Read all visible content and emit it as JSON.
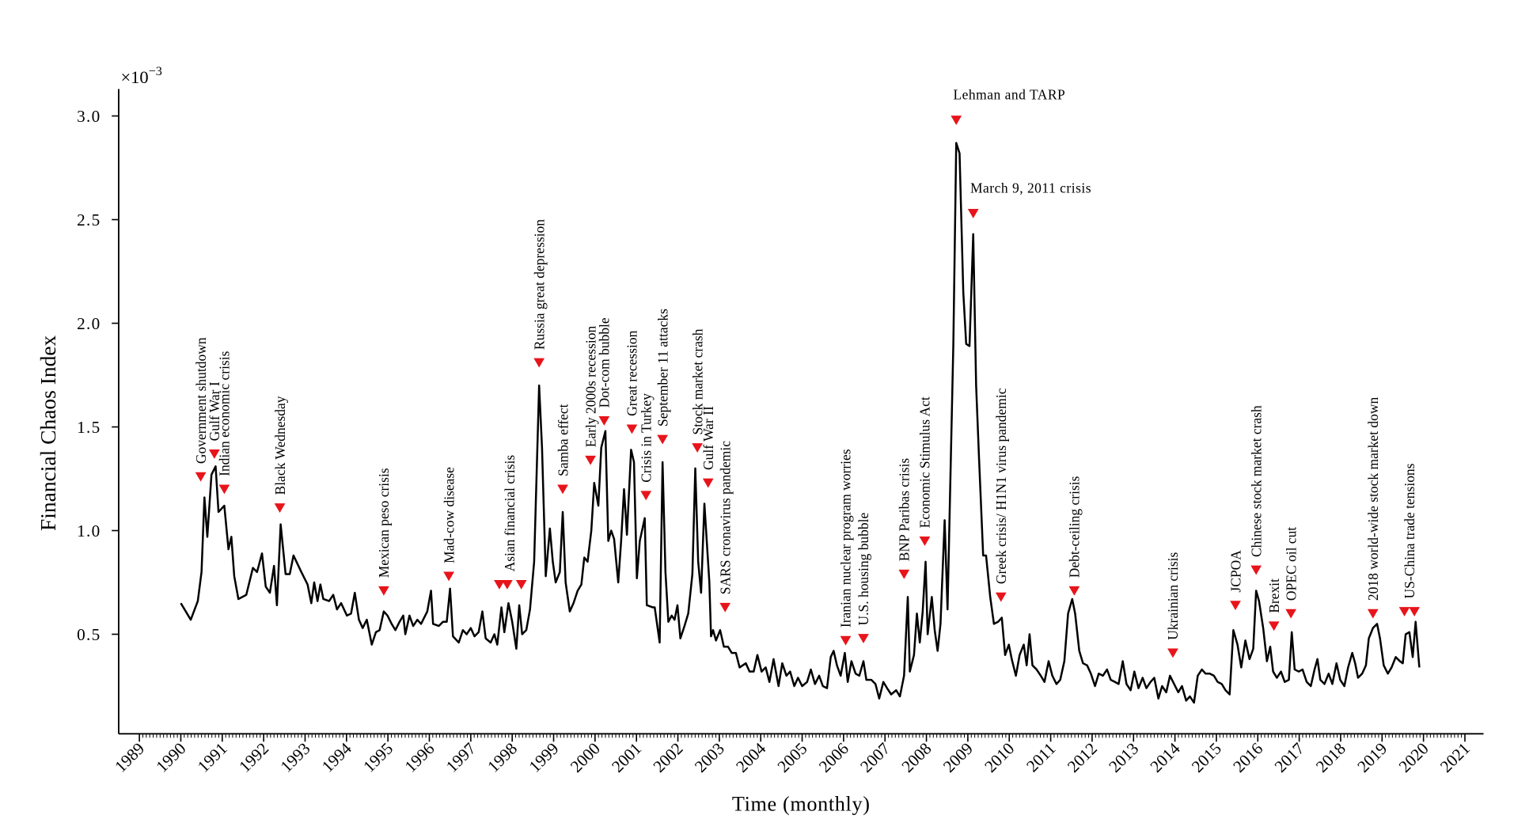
{
  "chart_data": {
    "type": "line",
    "y_label": "Financial Chaos Index",
    "x_label": "Time (monthly)",
    "y_multiplier": {
      "base": "×10",
      "exponent": "−3"
    },
    "color": "#000000",
    "annotation_marker_color": "#e8141b",
    "annotation_text_color": "#1b1b78",
    "xlim": [
      1988.5,
      2021.45
    ],
    "ylim": [
      0.02,
      3.13
    ],
    "xticks": [
      1989,
      1990,
      1991,
      1992,
      1993,
      1994,
      1995,
      1996,
      1997,
      1998,
      1999,
      2000,
      2001,
      2002,
      2003,
      2004,
      2005,
      2006,
      2007,
      2008,
      2009,
      2010,
      2011,
      2012,
      2013,
      2014,
      2015,
      2016,
      2017,
      2018,
      2019,
      2020,
      2021
    ],
    "yticks": [
      0.5,
      {
        "value": 1,
        "label": "1.0"
      },
      1.5,
      {
        "value": 2,
        "label": "2.0"
      },
      2.5,
      {
        "value": 3,
        "label": "3.0"
      }
    ],
    "x": [
      1990.0,
      1990.24,
      1990.41,
      1990.5,
      1990.57,
      1990.64,
      1990.74,
      1990.84,
      1990.91,
      1991.05,
      1991.15,
      1991.22,
      1991.29,
      1991.39,
      1991.58,
      1991.74,
      1991.84,
      1991.96,
      1992.05,
      1992.15,
      1992.25,
      1992.32,
      1992.41,
      1992.53,
      1992.63,
      1992.72,
      1992.91,
      1993.06,
      1993.15,
      1993.22,
      1993.3,
      1993.37,
      1993.44,
      1993.58,
      1993.68,
      1993.77,
      1993.87,
      1994.01,
      1994.11,
      1994.2,
      1994.3,
      1994.39,
      1994.49,
      1994.61,
      1994.71,
      1994.8,
      1994.9,
      1994.99,
      1995.09,
      1995.18,
      1995.28,
      1995.37,
      1995.42,
      1995.52,
      1995.61,
      1995.71,
      1995.8,
      1995.95,
      1996.04,
      1996.09,
      1996.23,
      1996.33,
      1996.42,
      1996.5,
      1996.57,
      1996.71,
      1996.81,
      1996.9,
      1997.0,
      1997.09,
      1997.19,
      1997.28,
      1997.36,
      1997.48,
      1997.57,
      1997.64,
      1997.74,
      1997.81,
      1997.91,
      1998.0,
      1998.1,
      1998.17,
      1998.24,
      1998.34,
      1998.43,
      1998.53,
      1998.65,
      1998.72,
      1998.81,
      1998.91,
      1998.98,
      1999.05,
      1999.15,
      1999.22,
      1999.29,
      1999.39,
      1999.48,
      1999.58,
      1999.67,
      1999.74,
      1999.82,
      1999.91,
      1999.98,
      2000.08,
      2000.15,
      2000.25,
      2000.32,
      2000.39,
      2000.46,
      2000.56,
      2000.63,
      2000.7,
      2000.77,
      2000.87,
      2000.94,
      2001.01,
      2001.08,
      2001.2,
      2001.25,
      2001.39,
      2001.44,
      2001.56,
      2001.63,
      2001.7,
      2001.77,
      2001.85,
      2001.92,
      2001.99,
      2002.06,
      2002.16,
      2002.25,
      2002.35,
      2002.42,
      2002.49,
      2002.56,
      2002.64,
      2002.76,
      2002.8,
      2002.85,
      2002.92,
      2003.02,
      2003.11,
      2003.21,
      2003.3,
      2003.4,
      2003.49,
      2003.64,
      2003.73,
      2003.83,
      2003.92,
      2004.02,
      2004.12,
      2004.21,
      2004.31,
      2004.43,
      2004.52,
      2004.62,
      2004.71,
      2004.81,
      2004.9,
      2005.0,
      2005.12,
      2005.21,
      2005.31,
      2005.41,
      2005.5,
      2005.6,
      2005.69,
      2005.76,
      2005.84,
      2005.93,
      2006.03,
      2006.1,
      2006.19,
      2006.29,
      2006.38,
      2006.48,
      2006.55,
      2006.67,
      2006.77,
      2006.86,
      2006.96,
      2007.05,
      2007.15,
      2007.27,
      2007.36,
      2007.46,
      2007.55,
      2007.6,
      2007.7,
      2007.77,
      2007.84,
      2007.91,
      2007.98,
      2008.03,
      2008.13,
      2008.2,
      2008.27,
      2008.34,
      2008.44,
      2008.51,
      2008.65,
      2008.72,
      2008.8,
      2008.89,
      2008.96,
      2009.04,
      2009.13,
      2009.2,
      2009.27,
      2009.37,
      2009.44,
      2009.54,
      2009.63,
      2009.73,
      2009.82,
      2009.9,
      2009.99,
      2010.06,
      2010.16,
      2010.25,
      2010.35,
      2010.42,
      2010.49,
      2010.56,
      2010.66,
      2010.76,
      2010.85,
      2010.95,
      2011.04,
      2011.14,
      2011.23,
      2011.33,
      2011.42,
      2011.52,
      2011.59,
      2011.69,
      2011.78,
      2011.88,
      2011.97,
      2012.07,
      2012.16,
      2012.26,
      2012.36,
      2012.45,
      2012.55,
      2012.64,
      2012.74,
      2012.83,
      2012.93,
      2013.02,
      2013.12,
      2013.22,
      2013.31,
      2013.41,
      2013.5,
      2013.6,
      2013.69,
      2013.79,
      2013.88,
      2013.98,
      2014.08,
      2014.17,
      2014.27,
      2014.36,
      2014.46,
      2014.55,
      2014.65,
      2014.74,
      2014.84,
      2014.94,
      2015.03,
      2015.13,
      2015.22,
      2015.32,
      2015.41,
      2015.51,
      2015.6,
      2015.7,
      2015.8,
      2015.89,
      2015.96,
      2016.03,
      2016.13,
      2016.22,
      2016.3,
      2016.37,
      2016.46,
      2016.56,
      2016.65,
      2016.75,
      2016.82,
      2016.89,
      2016.99,
      2017.08,
      2017.18,
      2017.28,
      2017.37,
      2017.44,
      2017.51,
      2017.61,
      2017.71,
      2017.8,
      2017.9,
      2017.99,
      2018.09,
      2018.18,
      2018.28,
      2018.35,
      2018.42,
      2018.52,
      2018.61,
      2018.68,
      2018.78,
      2018.88,
      2018.95,
      2019.04,
      2019.14,
      2019.23,
      2019.33,
      2019.43,
      2019.5,
      2019.57,
      2019.66,
      2019.74,
      2019.81,
      2019.9
    ],
    "values": [
      0.65,
      0.57,
      0.66,
      0.8,
      1.16,
      0.97,
      1.27,
      1.31,
      1.09,
      1.12,
      0.91,
      0.97,
      0.78,
      0.67,
      0.69,
      0.82,
      0.8,
      0.89,
      0.73,
      0.7,
      0.83,
      0.64,
      1.03,
      0.79,
      0.79,
      0.88,
      0.8,
      0.74,
      0.65,
      0.75,
      0.66,
      0.74,
      0.67,
      0.66,
      0.69,
      0.62,
      0.65,
      0.59,
      0.6,
      0.7,
      0.57,
      0.53,
      0.57,
      0.45,
      0.51,
      0.52,
      0.61,
      0.59,
      0.55,
      0.52,
      0.56,
      0.59,
      0.5,
      0.59,
      0.54,
      0.57,
      0.55,
      0.61,
      0.71,
      0.55,
      0.54,
      0.56,
      0.56,
      0.72,
      0.49,
      0.46,
      0.52,
      0.5,
      0.53,
      0.49,
      0.51,
      0.61,
      0.48,
      0.46,
      0.5,
      0.45,
      0.63,
      0.51,
      0.65,
      0.56,
      0.43,
      0.64,
      0.5,
      0.52,
      0.62,
      0.85,
      1.7,
      1.4,
      0.78,
      1.01,
      0.85,
      0.75,
      0.8,
      1.09,
      0.75,
      0.61,
      0.65,
      0.71,
      0.74,
      0.87,
      0.85,
      1.0,
      1.23,
      1.12,
      1.4,
      1.48,
      0.95,
      1.0,
      0.96,
      0.75,
      0.95,
      1.2,
      0.98,
      1.39,
      1.33,
      0.77,
      0.95,
      1.06,
      0.64,
      0.63,
      0.63,
      0.46,
      1.33,
      0.8,
      0.56,
      0.59,
      0.57,
      0.64,
      0.48,
      0.54,
      0.6,
      0.79,
      1.3,
      0.85,
      0.7,
      1.13,
      0.75,
      0.49,
      0.52,
      0.47,
      0.52,
      0.44,
      0.44,
      0.41,
      0.41,
      0.34,
      0.36,
      0.32,
      0.32,
      0.4,
      0.32,
      0.34,
      0.27,
      0.38,
      0.25,
      0.36,
      0.3,
      0.32,
      0.25,
      0.29,
      0.25,
      0.27,
      0.33,
      0.26,
      0.3,
      0.25,
      0.24,
      0.39,
      0.42,
      0.35,
      0.3,
      0.41,
      0.27,
      0.37,
      0.31,
      0.3,
      0.37,
      0.28,
      0.28,
      0.26,
      0.19,
      0.27,
      0.24,
      0.21,
      0.23,
      0.2,
      0.3,
      0.68,
      0.32,
      0.4,
      0.6,
      0.46,
      0.61,
      0.85,
      0.5,
      0.68,
      0.52,
      0.42,
      0.55,
      1.05,
      0.62,
      1.9,
      2.87,
      2.82,
      2.15,
      1.9,
      1.89,
      2.43,
      1.7,
      1.35,
      0.88,
      0.88,
      0.68,
      0.55,
      0.56,
      0.58,
      0.4,
      0.45,
      0.38,
      0.3,
      0.4,
      0.45,
      0.35,
      0.5,
      0.35,
      0.33,
      0.3,
      0.27,
      0.37,
      0.3,
      0.26,
      0.28,
      0.37,
      0.6,
      0.67,
      0.6,
      0.42,
      0.36,
      0.35,
      0.31,
      0.25,
      0.31,
      0.3,
      0.33,
      0.28,
      0.27,
      0.26,
      0.37,
      0.26,
      0.23,
      0.32,
      0.24,
      0.29,
      0.24,
      0.27,
      0.29,
      0.19,
      0.25,
      0.22,
      0.3,
      0.26,
      0.22,
      0.25,
      0.18,
      0.2,
      0.17,
      0.3,
      0.33,
      0.31,
      0.31,
      0.3,
      0.27,
      0.26,
      0.23,
      0.21,
      0.52,
      0.45,
      0.34,
      0.47,
      0.38,
      0.43,
      0.71,
      0.66,
      0.53,
      0.37,
      0.44,
      0.32,
      0.29,
      0.32,
      0.27,
      0.28,
      0.51,
      0.33,
      0.32,
      0.33,
      0.27,
      0.25,
      0.33,
      0.38,
      0.28,
      0.26,
      0.31,
      0.26,
      0.36,
      0.28,
      0.25,
      0.34,
      0.41,
      0.36,
      0.29,
      0.31,
      0.35,
      0.48,
      0.53,
      0.55,
      0.48,
      0.35,
      0.31,
      0.34,
      0.39,
      0.37,
      0.36,
      0.5,
      0.51,
      0.39,
      0.56,
      0.34
    ],
    "annotations": [
      {
        "text": "Government shutdown",
        "x": [
          1990.48
        ],
        "y": 1.26
      },
      {
        "text": "Gulf War I",
        "x": [
          1990.81
        ],
        "y": 1.37
      },
      {
        "text": "Indian economic crisis",
        "x": [
          1991.05
        ],
        "y": 1.2
      },
      {
        "text": "Black Wednesday",
        "x": [
          1992.39
        ],
        "y": 1.11
      },
      {
        "text": "Mexican peso crisis",
        "x": [
          1994.9
        ],
        "y": 0.71
      },
      {
        "text": "Mad-cow disease",
        "x": [
          1996.47
        ],
        "y": 0.78
      },
      {
        "text": "Asian financial crisis",
        "x": [
          1997.69,
          1997.88,
          1998.22
        ],
        "y": 0.74
      },
      {
        "text": "Russia great depression",
        "x": [
          1998.65
        ],
        "y": 1.81
      },
      {
        "text": "Samba effect",
        "x": [
          1999.22
        ],
        "y": 1.2
      },
      {
        "text": "Early 2000s recession",
        "x": [
          1999.89
        ],
        "y": 1.34
      },
      {
        "text": "Dot-com bubble",
        "x": [
          2000.22
        ],
        "y": 1.53
      },
      {
        "text": "Great recession",
        "x": [
          2000.89
        ],
        "y": 1.49
      },
      {
        "text": "Crisis in Turkey",
        "x": [
          2001.23
        ],
        "y": 1.17
      },
      {
        "text": "September 11 attacks",
        "x": [
          2001.63
        ],
        "y": 1.44
      },
      {
        "text": "Stock market crash",
        "x": [
          2002.47
        ],
        "y": 1.4
      },
      {
        "text": "Gulf War II",
        "x": [
          2002.73
        ],
        "y": 1.23
      },
      {
        "text": "SARS cronavirus pandemic",
        "x": [
          2003.14
        ],
        "y": 0.63
      },
      {
        "text": "Iranian nuclear program worries",
        "x": [
          2006.05
        ],
        "y": 0.47
      },
      {
        "text": "U.S. housing bubble",
        "x": [
          2006.48
        ],
        "y": 0.48
      },
      {
        "text": "BNP Paribas crisis",
        "x": [
          2007.46
        ],
        "y": 0.79
      },
      {
        "text": "Economic Stimulus Act",
        "x": [
          2007.96
        ],
        "y": 0.95
      },
      {
        "text": "Lehman and TARP",
        "x": [
          2008.72
        ],
        "y": 2.98
      },
      {
        "text": "March 9, 2011 crisis",
        "x": [
          2009.13
        ],
        "y": 2.53
      },
      {
        "text": "Greek crisis/ H1N1 virus pandemic",
        "x": [
          2009.8
        ],
        "y": 0.68
      },
      {
        "text": "Debt-ceiling crisis",
        "x": [
          2011.57
        ],
        "y": 0.71
      },
      {
        "text": "Ukrainian crisis",
        "x": [
          2013.95
        ],
        "y": 0.41
      },
      {
        "text": "JCPOA",
        "x": [
          2015.46
        ],
        "y": 0.64
      },
      {
        "text": "Chinese stock market crash",
        "x": [
          2015.96
        ],
        "y": 0.81
      },
      {
        "text": "Brexit",
        "x": [
          2016.39
        ],
        "y": 0.54
      },
      {
        "text": "OPEC oil cut",
        "x": [
          2016.8
        ],
        "y": 0.6
      },
      {
        "text": "2018 world-wide stock market down",
        "x": [
          2018.78
        ],
        "y": 0.6
      },
      {
        "text": "US-China trade tensions",
        "x": [
          2019.54,
          2019.78
        ],
        "y": 0.61
      }
    ]
  }
}
